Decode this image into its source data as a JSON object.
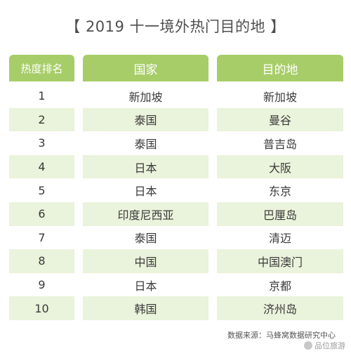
{
  "title": "【 2019 十一境外热门目的地 】",
  "headers": [
    "热度排名",
    "国家",
    "目的地"
  ],
  "rows": [
    {
      "rank": "1",
      "country": "新加坡",
      "destination": "新加坡"
    },
    {
      "rank": "2",
      "country": "泰国",
      "destination": "曼谷"
    },
    {
      "rank": "3",
      "country": "泰国",
      "destination": "普吉岛"
    },
    {
      "rank": "4",
      "country": "日本",
      "destination": "大阪"
    },
    {
      "rank": "5",
      "country": "日本",
      "destination": "东京"
    },
    {
      "rank": "6",
      "country": "印度尼西亚",
      "destination": "巴厘岛"
    },
    {
      "rank": "7",
      "country": "泰国",
      "destination": "清迈"
    },
    {
      "rank": "8",
      "country": "中国",
      "destination": "中国澳门"
    },
    {
      "rank": "9",
      "country": "日本",
      "destination": "京都"
    },
    {
      "rank": "10",
      "country": "韩国",
      "destination": "济州岛"
    }
  ],
  "source": "数据来源：马蜂窝数据研究中心",
  "watermark": "品位旅游",
  "colors": {
    "header_bg": "#a7cd68",
    "header_text": "#ffffff",
    "row_shaded": "#eaf3db",
    "row_plain": "#ffffff"
  }
}
